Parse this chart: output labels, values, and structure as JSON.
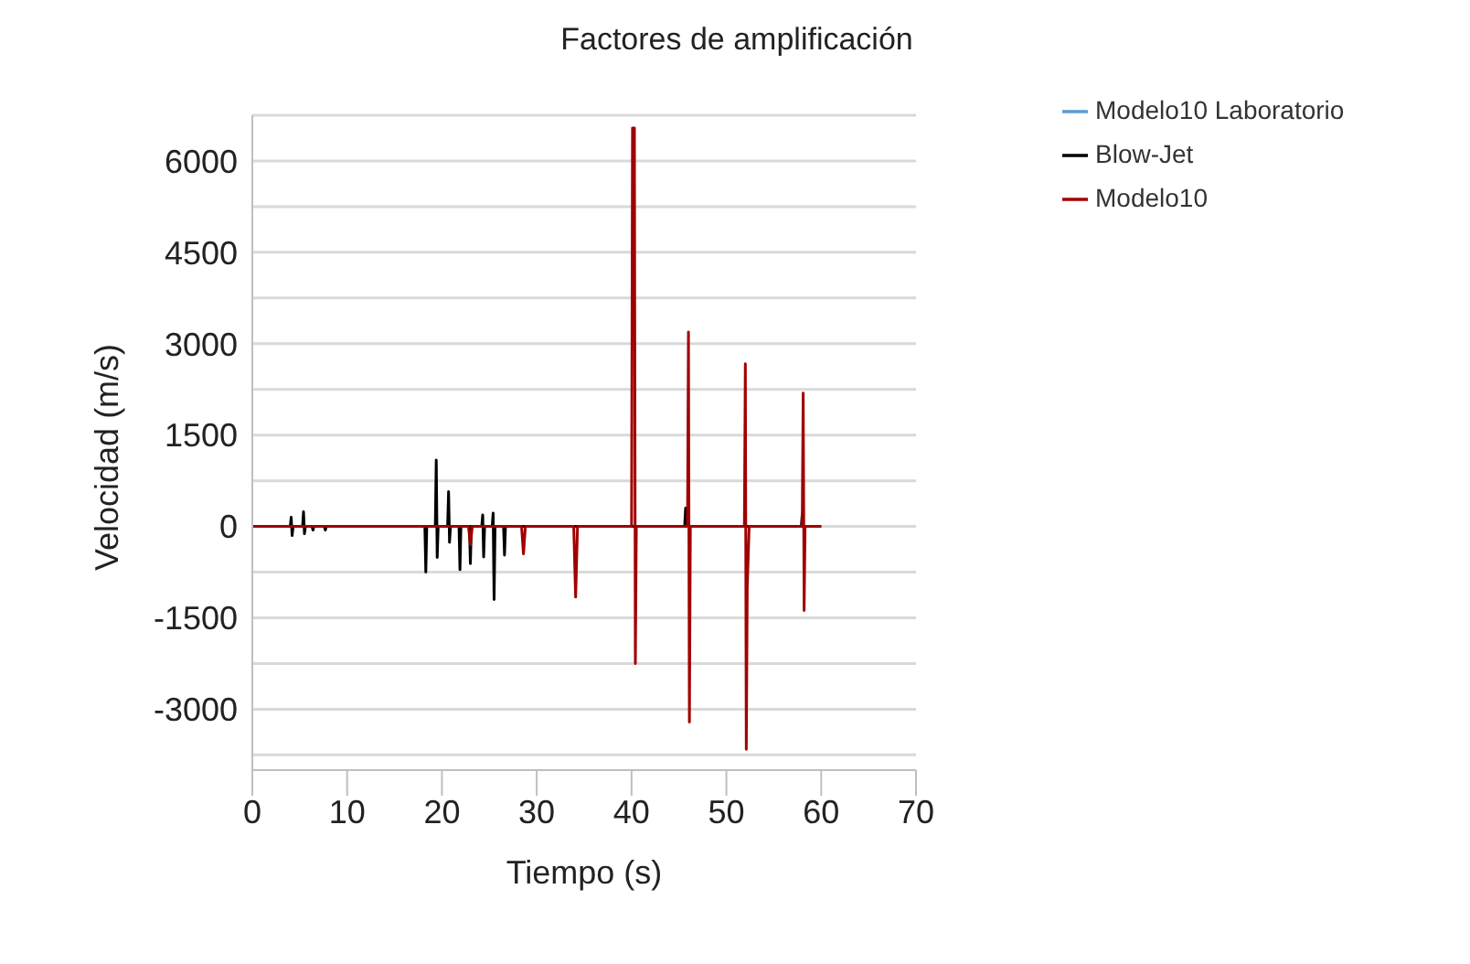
{
  "chart_data": {
    "type": "line",
    "title": "Factores de amplificación",
    "xlabel": "Tiempo (s)",
    "ylabel": "Velocidad (m/s)",
    "xlim": [
      0,
      70
    ],
    "xticks": [
      0,
      10,
      20,
      30,
      40,
      50,
      60,
      70
    ],
    "ylim": [
      -4000,
      6750
    ],
    "yticks": [
      {
        "value": -3750,
        "label": null
      },
      -3000,
      {
        "value": -2250,
        "label": null
      },
      -1500,
      {
        "value": -750,
        "label": null
      },
      0,
      {
        "value": 750,
        "label": null
      },
      1500,
      {
        "value": 2250,
        "label": null
      },
      3000,
      {
        "value": 3750,
        "label": null
      },
      4500,
      {
        "value": 5250,
        "label": null
      },
      6000,
      {
        "value": 6750,
        "label": null
      }
    ],
    "grid": "y",
    "legend": "top right",
    "marker": "none",
    "line_style": "solid",
    "series": [
      {
        "name": "Modelo10 Laboratorio",
        "color": "#5b9bd5"
      },
      {
        "name": "Blow-Jet",
        "color": "#000000",
        "x": [
          0,
          4.0,
          4.1,
          4.2,
          4.3,
          5.3,
          5.4,
          5.5,
          5.6,
          6.3,
          6.4,
          6.5,
          7.6,
          7.7,
          7.8,
          18.2,
          18.3,
          18.4,
          19.3,
          19.4,
          19.5,
          19.6,
          20.6,
          20.7,
          20.8,
          20.9,
          21.8,
          21.9,
          22.0,
          22.9,
          23.0,
          23.1,
          24.2,
          24.3,
          24.4,
          24.5,
          25.3,
          25.4,
          25.5,
          25.6,
          26.5,
          26.6,
          26.7,
          45.6,
          45.7,
          45.8,
          57.9,
          58.0,
          58.1,
          60
        ],
        "values": [
          0,
          0,
          150,
          -150,
          0,
          0,
          240,
          -120,
          0,
          0,
          -60,
          0,
          0,
          -60,
          0,
          0,
          -750,
          0,
          0,
          1090,
          -510,
          0,
          0,
          570,
          -260,
          0,
          0,
          -710,
          0,
          0,
          -610,
          0,
          0,
          190,
          -500,
          0,
          0,
          220,
          -1200,
          0,
          0,
          -470,
          0,
          0,
          300,
          0,
          0,
          200,
          0,
          0
        ]
      },
      {
        "name": "Modelo10",
        "color": "#a00000",
        "x": [
          0,
          22.8,
          23.0,
          23.2,
          28.4,
          28.6,
          28.8,
          33.9,
          34.1,
          34.3,
          40.0,
          40.1,
          40.3,
          40.4,
          40.5,
          45.9,
          46.0,
          46.1,
          46.2,
          51.9,
          52.0,
          52.1,
          52.2,
          52.4,
          58.0,
          58.1,
          58.2,
          58.3,
          60
        ],
        "values": [
          0,
          0,
          -300,
          0,
          0,
          -450,
          0,
          0,
          -1160,
          0,
          0,
          6540,
          6540,
          -2250,
          0,
          0,
          3190,
          -3210,
          0,
          0,
          2670,
          -3660,
          -1010,
          0,
          0,
          2190,
          -1380,
          0,
          0
        ]
      }
    ]
  }
}
